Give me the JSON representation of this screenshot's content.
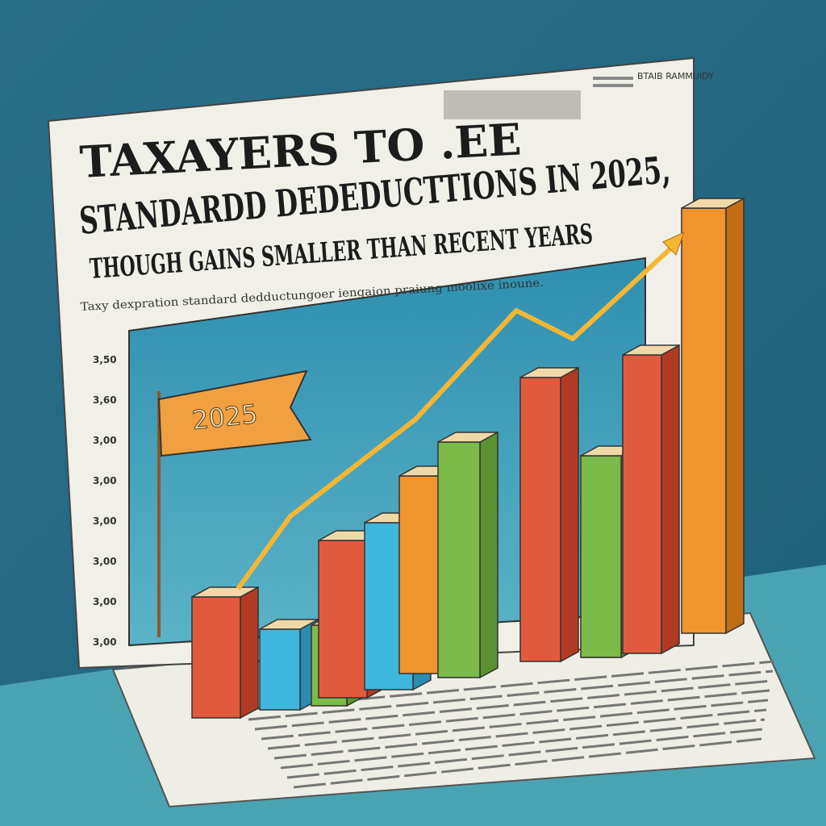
{
  "headline": {
    "line1": "TAXAYERS TO .EE",
    "line2": "STANDARDD DEDEDUCTTIONS IN 2025,",
    "line3": "THOUGH  GAINS SMALLER THAN  RECENT YEARS"
  },
  "subline": "Taxy dexpration standard dedductungoer iengaion praiung moolixe inoune.",
  "masthead": "BTAIB RAMMUIDY",
  "flag": "2025",
  "axis_labels": [
    "3,50",
    "3,60",
    "3,00",
    "3,00",
    "3,00",
    "3,00",
    "3,00",
    "3,00"
  ]
}
